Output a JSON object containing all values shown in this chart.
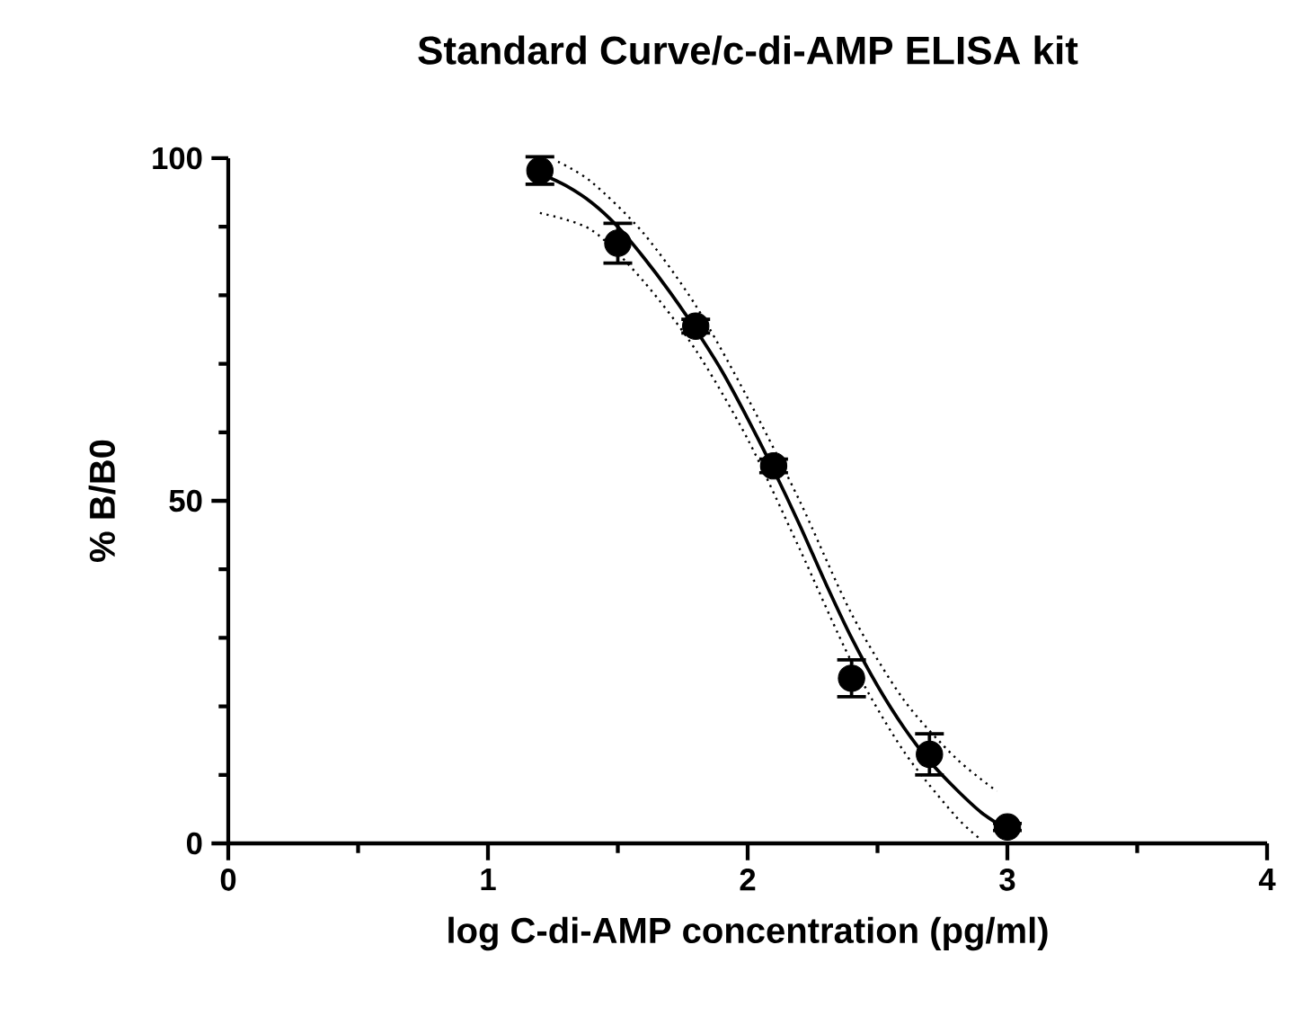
{
  "chart_data": {
    "type": "scatter",
    "title": "Standard Curve/c-di-AMP ELISA kit",
    "xlabel": "log C-di-AMP concentration (pg/ml)",
    "ylabel": "% B/B0",
    "xlim": [
      0,
      4
    ],
    "ylim": [
      0,
      100
    ],
    "xticks": [
      0,
      1,
      2,
      3,
      4
    ],
    "yticks": [
      0,
      50,
      100
    ],
    "grid": false,
    "series": [
      {
        "type": "line",
        "color": "#000000",
        "marker": "none",
        "line_style": "dotted",
        "x": [
          1.27,
          1.4,
          1.6,
          1.8,
          2.0,
          2.2,
          2.4,
          2.6,
          2.8,
          2.96
        ],
        "values": [
          99.5,
          96.5,
          89,
          78.5,
          65,
          50,
          33.5,
          21,
          12.5,
          7.6
        ]
      },
      {
        "type": "line",
        "color": "#000000",
        "marker": "none",
        "line_style": "dotted",
        "x": [
          1.2,
          1.4,
          1.6,
          1.8,
          2.0,
          2.2,
          2.4,
          2.6,
          2.8,
          2.9
        ],
        "values": [
          92,
          89.5,
          82,
          72,
          59,
          43,
          26.5,
          13.5,
          4,
          0.5
        ]
      },
      {
        "type": "line",
        "color": "#000000",
        "marker": "none",
        "line_style": "solid",
        "x": [
          1.2,
          1.3,
          1.4,
          1.5,
          1.6,
          1.7,
          1.8,
          1.9,
          2.0,
          2.1,
          2.2,
          2.3,
          2.4,
          2.5,
          2.6,
          2.7,
          2.8,
          2.9,
          3.0
        ],
        "values": [
          97.8,
          96,
          93.5,
          90,
          85.5,
          80.5,
          75,
          69,
          62,
          54.5,
          46.5,
          38,
          30,
          23,
          17,
          12,
          8,
          4.5,
          2
        ]
      },
      {
        "color": "#000000",
        "marker": "circle",
        "x": [
          1.2,
          1.5,
          1.8,
          2.1,
          2.4,
          2.7,
          3.0
        ],
        "values": [
          98.2,
          87.6,
          75.5,
          55.1,
          24.1,
          13,
          2.4
        ],
        "errors": [
          2,
          2.9,
          1,
          1,
          2.7,
          3,
          0.5
        ]
      }
    ]
  }
}
